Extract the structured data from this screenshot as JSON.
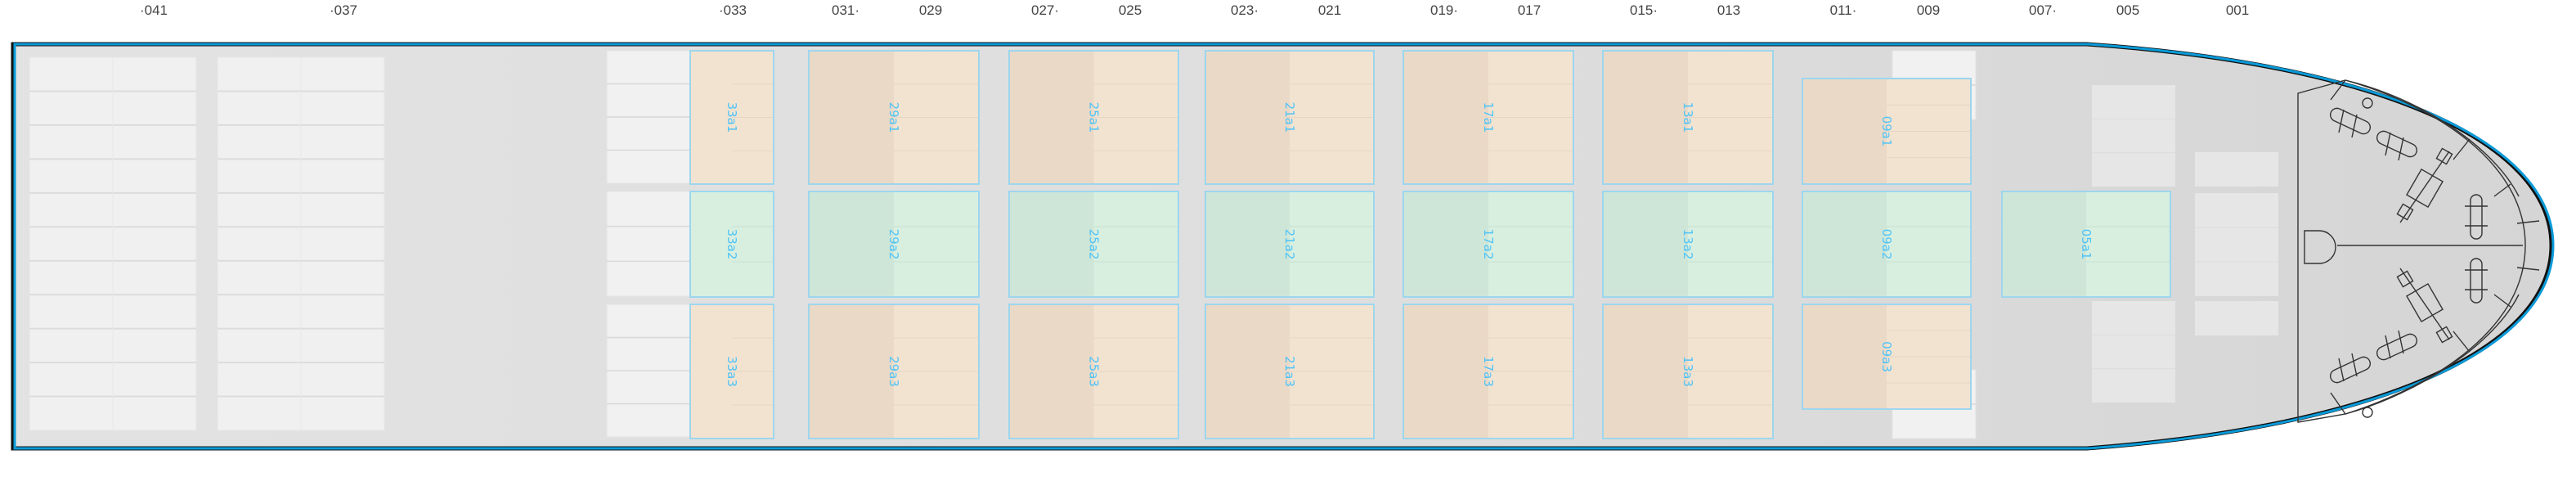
{
  "frames": [
    "·041",
    "·037",
    "·033",
    "031·",
    "029",
    "027·",
    "025",
    "023·",
    "021",
    "019·",
    "017",
    "015·",
    "013",
    "011·",
    "009",
    "007·",
    "005",
    "001"
  ],
  "bays": [
    {
      "id": "33",
      "rows": [
        {
          "label": "33a1",
          "kind": "hatch"
        },
        {
          "label": "33a2",
          "kind": "deck"
        },
        {
          "label": "33a3",
          "kind": "hatch"
        }
      ]
    },
    {
      "id": "29",
      "rows": [
        {
          "label": "29a1",
          "kind": "hatch"
        },
        {
          "label": "29a2",
          "kind": "deck"
        },
        {
          "label": "29a3",
          "kind": "hatch"
        }
      ]
    },
    {
      "id": "25",
      "rows": [
        {
          "label": "25a1",
          "kind": "hatch"
        },
        {
          "label": "25a2",
          "kind": "deck"
        },
        {
          "label": "25a3",
          "kind": "hatch"
        }
      ]
    },
    {
      "id": "21",
      "rows": [
        {
          "label": "21a1",
          "kind": "hatch"
        },
        {
          "label": "21a2",
          "kind": "deck"
        },
        {
          "label": "21a3",
          "kind": "hatch"
        }
      ]
    },
    {
      "id": "17",
      "rows": [
        {
          "label": "17a1",
          "kind": "hatch"
        },
        {
          "label": "17a2",
          "kind": "deck"
        },
        {
          "label": "17a3",
          "kind": "hatch"
        }
      ]
    },
    {
      "id": "13",
      "rows": [
        {
          "label": "13a1",
          "kind": "hatch"
        },
        {
          "label": "13a2",
          "kind": "deck"
        },
        {
          "label": "13a3",
          "kind": "hatch"
        }
      ]
    },
    {
      "id": "09",
      "rows": [
        {
          "label": "09a1",
          "kind": "hatch"
        },
        {
          "label": "09a2",
          "kind": "deck"
        },
        {
          "label": "09a3",
          "kind": "hatch"
        }
      ]
    },
    {
      "id": "05",
      "rows": [
        {
          "label": "05a1",
          "kind": "deck"
        }
      ]
    }
  ],
  "colors": {
    "hull_outline": "#0a9ad8",
    "hatch_fill": "#f2e3d1",
    "deck_fill": "#d8efe0",
    "bay_border": "#9dd6ee",
    "bay_label": "#4fc3f7",
    "deck_bg": "#e0e0e0"
  }
}
